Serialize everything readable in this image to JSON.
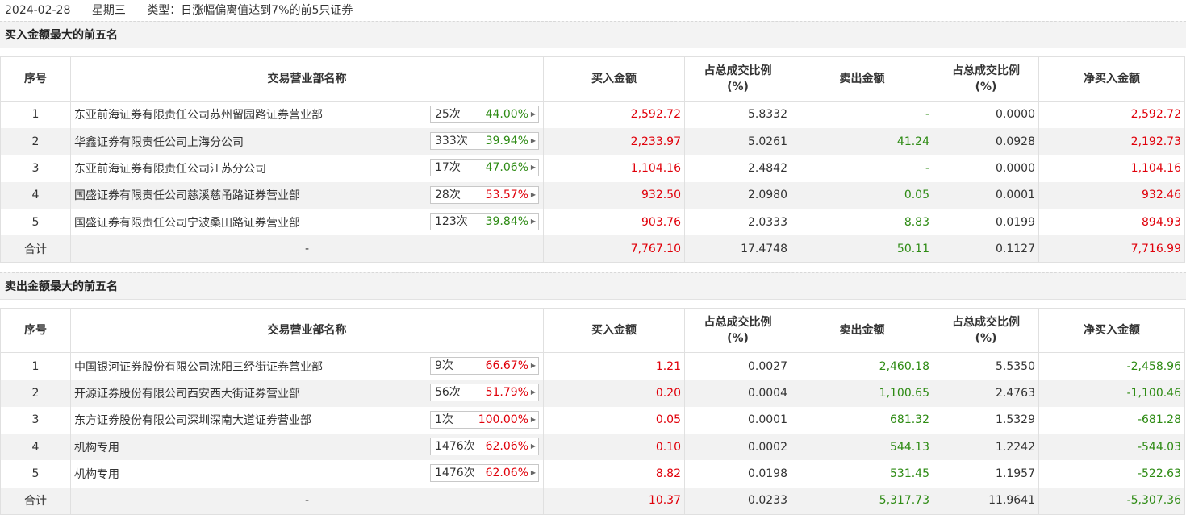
{
  "header": {
    "date": "2024-02-28",
    "weekday": "星期三",
    "type_text": "类型：日涨幅偏离值达到7%的前5只证券"
  },
  "columns": {
    "idx": "序号",
    "dept": "交易营业部名称",
    "buy": "买入金额",
    "buy_ratio": "占总成交比例\n(%)",
    "sell": "卖出金额",
    "sell_ratio": "占总成交比例\n(%)",
    "net": "净买入金额"
  },
  "colors": {
    "up": "#e0000a",
    "down": "#2e8b14"
  },
  "buy_section": {
    "title": "买入金额最大的前五名",
    "rows": [
      {
        "idx": "1",
        "dept": "东亚前海证券有限责任公司苏州留园路证券营业部",
        "times": "25次",
        "rate": "44.00%",
        "rate_color": "green",
        "buy": "2,592.72",
        "buy_ratio": "5.8332",
        "sell": "-",
        "sell_ratio": "0.0000",
        "net": "2,592.72",
        "net_color": "red"
      },
      {
        "idx": "2",
        "dept": "华鑫证券有限责任公司上海分公司",
        "times": "333次",
        "rate": "39.94%",
        "rate_color": "green",
        "buy": "2,233.97",
        "buy_ratio": "5.0261",
        "sell": "41.24",
        "sell_ratio": "0.0928",
        "net": "2,192.73",
        "net_color": "red"
      },
      {
        "idx": "3",
        "dept": "东亚前海证券有限责任公司江苏分公司",
        "times": "17次",
        "rate": "47.06%",
        "rate_color": "green",
        "buy": "1,104.16",
        "buy_ratio": "2.4842",
        "sell": "-",
        "sell_ratio": "0.0000",
        "net": "1,104.16",
        "net_color": "red"
      },
      {
        "idx": "4",
        "dept": "国盛证券有限责任公司慈溪慈甬路证券营业部",
        "times": "28次",
        "rate": "53.57%",
        "rate_color": "red",
        "buy": "932.50",
        "buy_ratio": "2.0980",
        "sell": "0.05",
        "sell_ratio": "0.0001",
        "net": "932.46",
        "net_color": "red"
      },
      {
        "idx": "5",
        "dept": "国盛证券有限责任公司宁波桑田路证券营业部",
        "times": "123次",
        "rate": "39.84%",
        "rate_color": "green",
        "buy": "903.76",
        "buy_ratio": "2.0333",
        "sell": "8.83",
        "sell_ratio": "0.0199",
        "net": "894.93",
        "net_color": "red"
      }
    ],
    "total": {
      "label": "合计",
      "dept": "-",
      "buy": "7,767.10",
      "buy_ratio": "17.4748",
      "sell": "50.11",
      "sell_ratio": "0.1127",
      "net": "7,716.99",
      "net_color": "red"
    }
  },
  "sell_section": {
    "title": "卖出金额最大的前五名",
    "rows": [
      {
        "idx": "1",
        "dept": "中国银河证券股份有限公司沈阳三经街证券营业部",
        "times": "9次",
        "rate": "66.67%",
        "rate_color": "red",
        "buy": "1.21",
        "buy_ratio": "0.0027",
        "sell": "2,460.18",
        "sell_ratio": "5.5350",
        "net": "-2,458.96",
        "net_color": "green"
      },
      {
        "idx": "2",
        "dept": "开源证券股份有限公司西安西大街证券营业部",
        "times": "56次",
        "rate": "51.79%",
        "rate_color": "red",
        "buy": "0.20",
        "buy_ratio": "0.0004",
        "sell": "1,100.65",
        "sell_ratio": "2.4763",
        "net": "-1,100.46",
        "net_color": "green"
      },
      {
        "idx": "3",
        "dept": "东方证券股份有限公司深圳深南大道证券营业部",
        "times": "1次",
        "rate": "100.00%",
        "rate_color": "red",
        "buy": "0.05",
        "buy_ratio": "0.0001",
        "sell": "681.32",
        "sell_ratio": "1.5329",
        "net": "-681.28",
        "net_color": "green"
      },
      {
        "idx": "4",
        "dept": "机构专用",
        "times": "1476次",
        "rate": "62.06%",
        "rate_color": "red",
        "buy": "0.10",
        "buy_ratio": "0.0002",
        "sell": "544.13",
        "sell_ratio": "1.2242",
        "net": "-544.03",
        "net_color": "green"
      },
      {
        "idx": "5",
        "dept": "机构专用",
        "times": "1476次",
        "rate": "62.06%",
        "rate_color": "red",
        "buy": "8.82",
        "buy_ratio": "0.0198",
        "sell": "531.45",
        "sell_ratio": "1.1957",
        "net": "-522.63",
        "net_color": "green"
      }
    ],
    "total": {
      "label": "合计",
      "dept": "-",
      "buy": "10.37",
      "buy_ratio": "0.0233",
      "sell": "5,317.73",
      "sell_ratio": "11.9641",
      "net": "-5,307.36",
      "net_color": "green"
    }
  }
}
